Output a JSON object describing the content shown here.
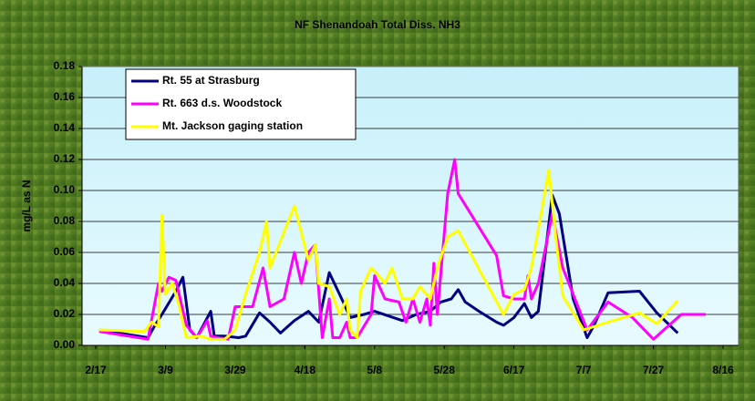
{
  "chart_data": {
    "type": "line",
    "title": "NF Shenandoah Total Diss. NH3",
    "y_label": "mg/L as N",
    "xlim": [
      "2/17",
      "8/16"
    ],
    "xticks": [
      "2/17",
      "3/9",
      "3/29",
      "4/18",
      "5/8",
      "5/28",
      "6/17",
      "7/7",
      "7/27",
      "8/16"
    ],
    "ylim": [
      0,
      0.18
    ],
    "yticks": [
      {
        "value": 0,
        "label": "0.00"
      },
      0.02,
      0.04,
      0.06,
      0.08,
      {
        "value": 0.1,
        "label": "0.10"
      },
      0.12,
      0.14,
      0.16,
      0.18
    ],
    "grid": true,
    "legend": "upper left",
    "series": [
      {
        "name": "Rt. 55 at Strasburg",
        "color": "#000080",
        "x": [
          "2/18",
          "3/4",
          "3/6",
          "3/8",
          "3/12",
          "3/14",
          "3/16",
          "3/18",
          "3/22",
          "3/23",
          "3/26",
          "3/30",
          "4/1",
          "4/5",
          "4/8",
          "4/11",
          "4/15",
          "4/19",
          "4/22",
          "4/25",
          "4/29",
          "5/1",
          "5/5",
          "5/8",
          "5/12",
          "5/16",
          "5/20",
          "5/24",
          "5/27",
          "5/30",
          "6/1",
          "6/3",
          "6/7",
          "6/12",
          "6/14",
          "6/17",
          "6/20",
          "6/22",
          "6/24",
          "6/28",
          "6/30",
          "7/4",
          "7/8",
          "7/10",
          "7/14",
          "7/23",
          "7/28",
          "8/3"
        ],
        "values": [
          0.01,
          0.005,
          0.013,
          0.02,
          0.035,
          0.044,
          0.01,
          0.005,
          0.022,
          0.006,
          0.006,
          0.005,
          0.006,
          0.021,
          0.015,
          0.008,
          0.016,
          0.022,
          0.015,
          0.047,
          0.028,
          0.018,
          0.02,
          0.022,
          0.019,
          0.016,
          0.02,
          0.022,
          0.028,
          0.03,
          0.036,
          0.028,
          0.022,
          0.015,
          0.013,
          0.018,
          0.027,
          0.018,
          0.022,
          0.097,
          0.085,
          0.03,
          0.005,
          0.013,
          0.034,
          0.035,
          0.021,
          0.008
        ]
      },
      {
        "name": "Rt. 663 d.s. Woodstock",
        "color": "#ff00ff",
        "x": [
          "2/18",
          "3/4",
          "3/7",
          "3/8",
          "3/10",
          "3/12",
          "3/15",
          "3/18",
          "3/21",
          "3/22",
          "3/24",
          "3/27",
          "3/29",
          "3/31",
          "4/3",
          "4/6",
          "4/8",
          "4/12",
          "4/15",
          "4/17",
          "4/19",
          "4/21",
          "4/23",
          "4/25",
          "4/26",
          "4/28",
          "4/30",
          "5/1",
          "5/3",
          "5/7",
          "5/8",
          "5/11",
          "5/15",
          "5/17",
          "5/19",
          "5/21",
          "5/23",
          "5/24",
          "5/25",
          "5/26",
          "5/29",
          "5/31",
          "6/1",
          "6/12",
          "6/14",
          "6/17",
          "6/20",
          "6/21",
          "6/22",
          "6/24",
          "6/28",
          "7/1",
          "7/8",
          "7/14",
          "7/21",
          "7/27",
          "8/4",
          "8/11"
        ],
        "values": [
          0.009,
          0.004,
          0.04,
          0.035,
          0.044,
          0.042,
          0.013,
          0.005,
          0.016,
          0.006,
          0.005,
          0.004,
          0.025,
          0.025,
          0.025,
          0.05,
          0.025,
          0.03,
          0.06,
          0.04,
          0.06,
          0.065,
          0.005,
          0.03,
          0.005,
          0.005,
          0.015,
          0.005,
          0.005,
          0.02,
          0.045,
          0.03,
          0.028,
          0.015,
          0.03,
          0.015,
          0.03,
          0.013,
          0.053,
          0.02,
          0.098,
          0.12,
          0.098,
          0.058,
          0.032,
          0.03,
          0.03,
          0.045,
          0.03,
          0.04,
          0.085,
          0.05,
          0.01,
          0.028,
          0.018,
          0.004,
          0.02,
          0.02
        ]
      },
      {
        "name": "Mt. Jackson gaging station",
        "color": "#ffff00",
        "x": [
          "2/18",
          "3/3",
          "3/5",
          "3/7",
          "3/8",
          "3/9",
          "3/11",
          "3/13",
          "3/15",
          "3/19",
          "3/22",
          "3/26",
          "3/29",
          "4/1",
          "4/5",
          "4/7",
          "4/8",
          "4/15",
          "4/19",
          "4/21",
          "4/22",
          "4/25",
          "4/28",
          "4/30",
          "5/1",
          "5/3",
          "5/4",
          "5/7",
          "5/8",
          "5/11",
          "5/13",
          "5/16",
          "5/19",
          "5/21",
          "5/24",
          "5/26",
          "5/29",
          "6/1",
          "6/14",
          "6/17",
          "6/20",
          "6/22",
          "6/27",
          "6/29",
          "7/1",
          "7/7",
          "7/14",
          "7/23",
          "7/28",
          "8/3"
        ],
        "values": [
          0.01,
          0.009,
          0.015,
          0.012,
          0.084,
          0.033,
          0.04,
          0.025,
          0.005,
          0.006,
          0.004,
          0.004,
          0.01,
          0.033,
          0.06,
          0.08,
          0.05,
          0.09,
          0.055,
          0.065,
          0.04,
          0.038,
          0.02,
          0.03,
          0.01,
          0.005,
          0.035,
          0.05,
          0.048,
          0.04,
          0.05,
          0.03,
          0.03,
          0.038,
          0.03,
          0.05,
          0.07,
          0.074,
          0.02,
          0.033,
          0.036,
          0.05,
          0.113,
          0.07,
          0.032,
          0.01,
          0.015,
          0.021,
          0.014,
          0.029
        ]
      }
    ]
  }
}
